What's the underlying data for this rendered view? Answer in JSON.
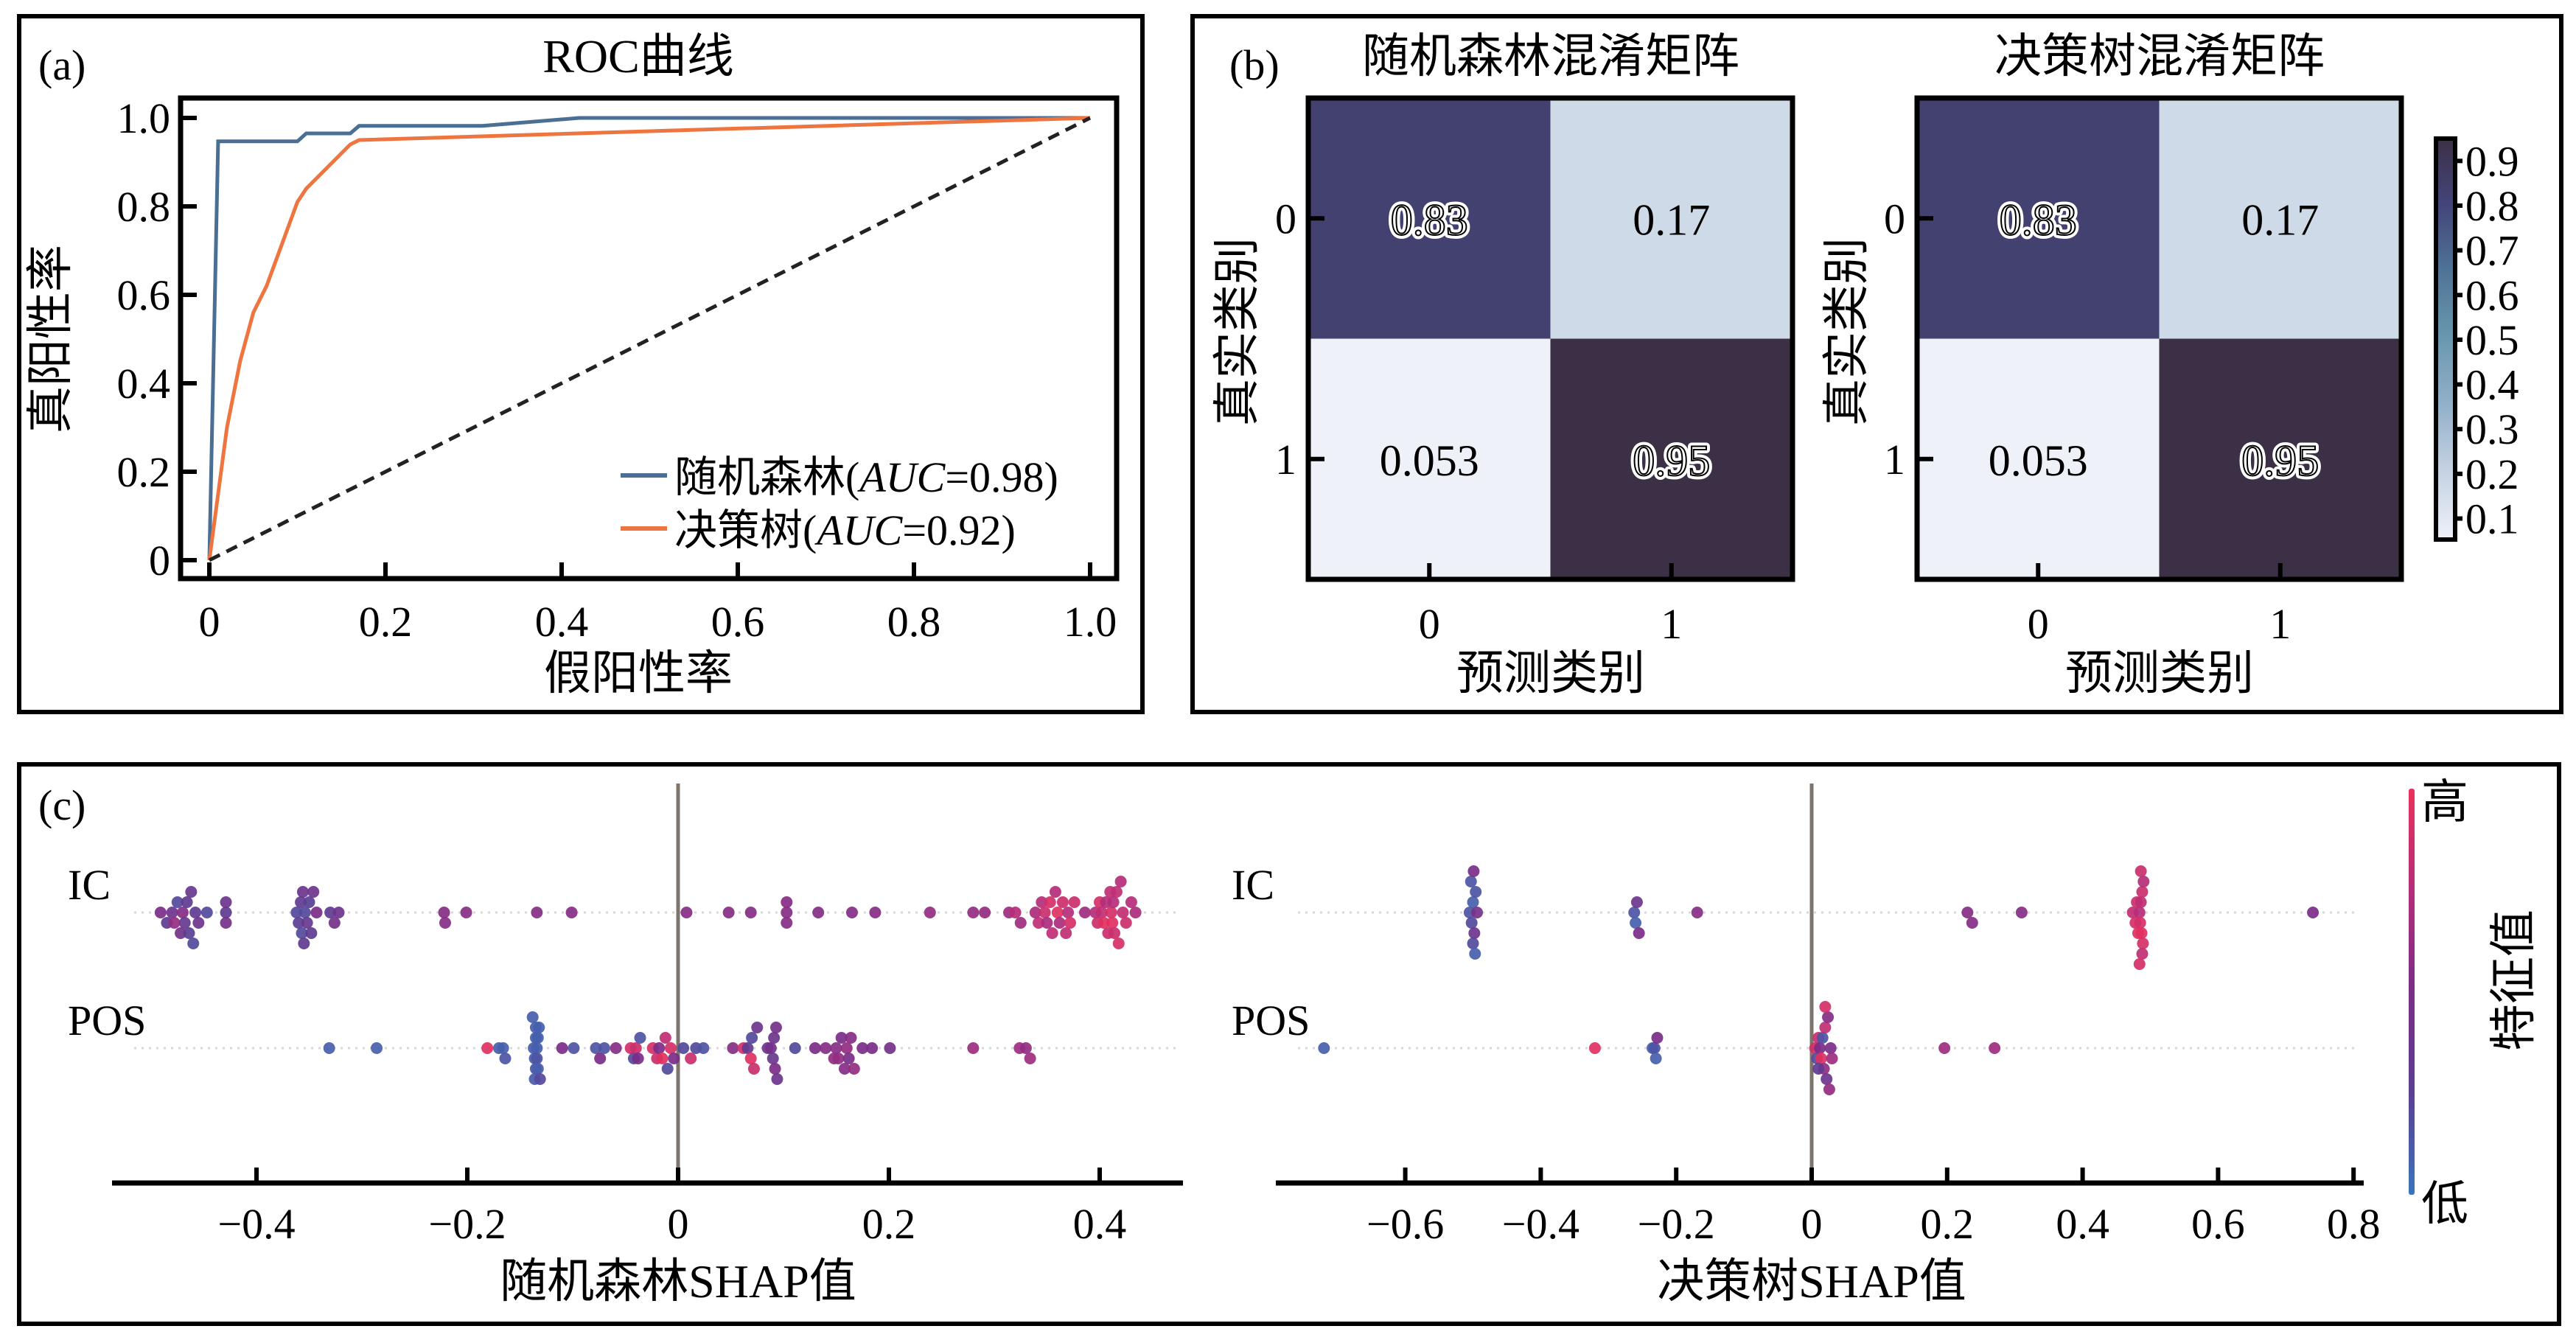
{
  "panels": {
    "a": {
      "tag": "(a)"
    },
    "b": {
      "tag": "(b)"
    },
    "c": {
      "tag": "(c)"
    }
  },
  "chart_data": [
    {
      "id": "roc",
      "type": "line",
      "title": "ROC曲线",
      "xlabel": "假阳性率",
      "ylabel": "真阳性率",
      "xlim": [
        0,
        1
      ],
      "ylim": [
        0,
        1
      ],
      "xticks": [
        0,
        0.2,
        0.4,
        0.6,
        0.8,
        1.0
      ],
      "xtick_labels": [
        "0",
        "0.2",
        "0.4",
        "0.6",
        "0.8",
        "1.0"
      ],
      "yticks": [
        0,
        0.2,
        0.4,
        0.6,
        0.8,
        1.0
      ],
      "ytick_labels": [
        "0",
        "0.2",
        "0.4",
        "0.6",
        "0.8",
        "1.0"
      ],
      "grid": false,
      "legend_position": "bottom-right",
      "series": [
        {
          "name": "随机森林",
          "legend_prefix": "随机森林(",
          "legend_auc_label": "AUC",
          "legend_suffix": "=0.98)",
          "auc": 0.98,
          "color": "#4a6f94",
          "x": [
            0,
            0.01,
            0.1,
            0.11,
            0.16,
            0.17,
            0.31,
            0.42,
            1.0
          ],
          "y": [
            0,
            0.947,
            0.947,
            0.965,
            0.965,
            0.982,
            0.982,
            1.0,
            1.0
          ]
        },
        {
          "name": "决策树",
          "legend_prefix": "决策树(",
          "legend_auc_label": "AUC",
          "legend_suffix": "=0.92)",
          "auc": 0.92,
          "color": "#ee7540",
          "x": [
            0,
            0.02,
            0.035,
            0.05,
            0.065,
            0.1,
            0.11,
            0.16,
            0.17,
            0.5,
            1.0
          ],
          "y": [
            0,
            0.3,
            0.45,
            0.56,
            0.62,
            0.81,
            0.84,
            0.94,
            0.95,
            0.97,
            1.0
          ]
        },
        {
          "name": "reference",
          "color": "#222222",
          "dashed": true,
          "x": [
            0,
            1
          ],
          "y": [
            0,
            1
          ]
        }
      ]
    },
    {
      "id": "cm-rf",
      "type": "heatmap",
      "title": "随机森林混淆矩阵",
      "xlabel": "预测类别",
      "ylabel": "真实类别",
      "x_categories": [
        "0",
        "1"
      ],
      "y_categories": [
        "0",
        "1"
      ],
      "values": [
        [
          0.83,
          0.17
        ],
        [
          0.053,
          0.95
        ]
      ],
      "labels": [
        [
          "0.83",
          "0.17"
        ],
        [
          "0.053",
          "0.95"
        ]
      ]
    },
    {
      "id": "cm-dt",
      "type": "heatmap",
      "title": "决策树混淆矩阵",
      "xlabel": "预测类别",
      "ylabel": "真实类别",
      "x_categories": [
        "0",
        "1"
      ],
      "y_categories": [
        "0",
        "1"
      ],
      "values": [
        [
          0.83,
          0.17
        ],
        [
          0.053,
          0.95
        ]
      ],
      "labels": [
        [
          "0.83",
          "0.17"
        ],
        [
          "0.053",
          "0.95"
        ]
      ]
    },
    {
      "id": "cm-colorbar",
      "type": "heatmap",
      "colorbar": true,
      "range": [
        0.053,
        0.95
      ],
      "ticks": [
        0.1,
        0.2,
        0.3,
        0.4,
        0.5,
        0.6,
        0.7,
        0.8,
        0.9
      ],
      "tick_labels": [
        "0.1",
        "0.2",
        "0.3",
        "0.4",
        "0.5",
        "0.6",
        "0.7",
        "0.8",
        "0.9"
      ],
      "colormap_stops": [
        "#eef1f8",
        "#c7d3e3",
        "#93b1c8",
        "#6a98b0",
        "#4f7596",
        "#43457a",
        "#3c3046"
      ]
    },
    {
      "id": "shap-rf",
      "type": "scatter",
      "xlabel": "随机森林SHAP值",
      "xlim": [
        -0.53,
        0.48
      ],
      "xticks": [
        -0.4,
        -0.2,
        0,
        0.2,
        0.4
      ],
      "xtick_labels": [
        "−0.4",
        "−0.2",
        "0",
        "0.2",
        "0.4"
      ],
      "features": [
        "IC",
        "POS"
      ],
      "points": {
        "IC": [
          [
            -0.491,
            0.5
          ],
          [
            -0.485,
            0.3
          ],
          [
            -0.48,
            0.4
          ],
          [
            -0.478,
            0.6
          ],
          [
            -0.475,
            0.2
          ],
          [
            -0.472,
            0.45
          ],
          [
            -0.47,
            0.55
          ],
          [
            -0.468,
            0.35
          ],
          [
            -0.466,
            0.3
          ],
          [
            -0.464,
            0.25
          ],
          [
            -0.462,
            0.35
          ],
          [
            -0.46,
            0.2
          ],
          [
            -0.458,
            0.3
          ],
          [
            -0.455,
            0.4
          ],
          [
            -0.447,
            0.2
          ],
          [
            -0.429,
            0.3
          ],
          [
            -0.429,
            0.45
          ],
          [
            -0.429,
            0.4
          ],
          [
            -0.362,
            0.2
          ],
          [
            -0.36,
            0.25
          ],
          [
            -0.358,
            0.3
          ],
          [
            -0.357,
            0.2
          ],
          [
            -0.356,
            0.4
          ],
          [
            -0.355,
            0.3
          ],
          [
            -0.354,
            0.2
          ],
          [
            -0.352,
            0.35
          ],
          [
            -0.35,
            0.25
          ],
          [
            -0.348,
            0.3
          ],
          [
            -0.346,
            0.4
          ],
          [
            -0.343,
            0.5
          ],
          [
            -0.33,
            0.3
          ],
          [
            -0.326,
            0.45
          ],
          [
            -0.322,
            0.4
          ],
          [
            -0.222,
            0.55
          ],
          [
            -0.221,
            0.55
          ],
          [
            -0.201,
            0.55
          ],
          [
            -0.134,
            0.55
          ],
          [
            -0.101,
            0.55
          ],
          [
            0.008,
            0.55
          ],
          [
            0.048,
            0.55
          ],
          [
            0.069,
            0.55
          ],
          [
            0.103,
            0.55
          ],
          [
            0.103,
            0.55
          ],
          [
            0.103,
            0.55
          ],
          [
            0.133,
            0.55
          ],
          [
            0.165,
            0.55
          ],
          [
            0.187,
            0.55
          ],
          [
            0.239,
            0.6
          ],
          [
            0.28,
            0.6
          ],
          [
            0.291,
            0.6
          ],
          [
            0.314,
            0.65
          ],
          [
            0.32,
            0.75
          ],
          [
            0.325,
            0.65
          ],
          [
            0.339,
            0.7
          ],
          [
            0.342,
            0.8
          ],
          [
            0.345,
            0.75
          ],
          [
            0.348,
            0.85
          ],
          [
            0.35,
            0.7
          ],
          [
            0.353,
            0.9
          ],
          [
            0.355,
            0.8
          ],
          [
            0.358,
            0.75
          ],
          [
            0.36,
            0.95
          ],
          [
            0.362,
            0.7
          ],
          [
            0.365,
            0.85
          ],
          [
            0.368,
            0.8
          ],
          [
            0.37,
            0.75
          ],
          [
            0.372,
            0.9
          ],
          [
            0.376,
            0.85
          ],
          [
            0.386,
            0.65
          ],
          [
            0.396,
            0.75
          ],
          [
            0.398,
            0.85
          ],
          [
            0.4,
            0.9
          ],
          [
            0.402,
            0.8
          ],
          [
            0.404,
            0.95
          ],
          [
            0.406,
            0.75
          ],
          [
            0.408,
            0.85
          ],
          [
            0.41,
            0.8
          ],
          [
            0.411,
            0.9
          ],
          [
            0.412,
            0.95
          ],
          [
            0.413,
            0.75
          ],
          [
            0.414,
            0.85
          ],
          [
            0.416,
            0.8
          ],
          [
            0.418,
            0.9
          ],
          [
            0.42,
            0.75
          ],
          [
            0.422,
            0.8
          ],
          [
            0.425,
            0.85
          ],
          [
            0.43,
            0.75
          ],
          [
            0.434,
            0.7
          ]
        ],
        "POS": [
          [
            -0.331,
            0.1
          ],
          [
            -0.286,
            0.1
          ],
          [
            -0.181,
            0.95
          ],
          [
            -0.17,
            0.1
          ],
          [
            -0.166,
            0.1
          ],
          [
            -0.164,
            0.15
          ],
          [
            -0.137,
            0.1
          ],
          [
            -0.136,
            0.1
          ],
          [
            -0.135,
            0.1
          ],
          [
            -0.135,
            0.15
          ],
          [
            -0.135,
            0.1
          ],
          [
            -0.134,
            0.1
          ],
          [
            -0.134,
            0.15
          ],
          [
            -0.133,
            0.1
          ],
          [
            -0.133,
            0.1
          ],
          [
            -0.132,
            0.1
          ],
          [
            -0.136,
            0.12
          ],
          [
            -0.138,
            0.1
          ],
          [
            -0.131,
            0.2
          ],
          [
            -0.11,
            0.5
          ],
          [
            -0.099,
            0.15
          ],
          [
            -0.078,
            0.15
          ],
          [
            -0.074,
            0.5
          ],
          [
            -0.07,
            0.15
          ],
          [
            -0.059,
            0.55
          ],
          [
            -0.045,
            0.9
          ],
          [
            -0.042,
            0.2
          ],
          [
            -0.04,
            0.85
          ],
          [
            -0.038,
            0.5
          ],
          [
            -0.036,
            0.15
          ],
          [
            -0.024,
            0.9
          ],
          [
            -0.02,
            0.85
          ],
          [
            -0.018,
            0.5
          ],
          [
            -0.015,
            0.95
          ],
          [
            -0.012,
            0.8
          ],
          [
            -0.01,
            0.2
          ],
          [
            -0.007,
            0.9
          ],
          [
            -0.004,
            0.5
          ],
          [
            0.005,
            0.2
          ],
          [
            0.012,
            0.85
          ],
          [
            0.017,
            0.2
          ],
          [
            0.024,
            0.15
          ],
          [
            0.052,
            0.55
          ],
          [
            0.062,
            0.9
          ],
          [
            0.066,
            0.3
          ],
          [
            0.069,
            0.95
          ],
          [
            0.07,
            0.2
          ],
          [
            0.072,
            0.85
          ],
          [
            0.075,
            0.4
          ],
          [
            0.085,
            0.4
          ],
          [
            0.088,
            0.45
          ],
          [
            0.09,
            0.35
          ],
          [
            0.091,
            0.4
          ],
          [
            0.092,
            0.5
          ],
          [
            0.093,
            0.45
          ],
          [
            0.094,
            0.4
          ],
          [
            0.111,
            0.2
          ],
          [
            0.13,
            0.5
          ],
          [
            0.14,
            0.55
          ],
          [
            0.148,
            0.6
          ],
          [
            0.15,
            0.55
          ],
          [
            0.152,
            0.6
          ],
          [
            0.155,
            0.5
          ],
          [
            0.158,
            0.55
          ],
          [
            0.16,
            0.6
          ],
          [
            0.162,
            0.5
          ],
          [
            0.164,
            0.55
          ],
          [
            0.167,
            0.6
          ],
          [
            0.175,
            0.5
          ],
          [
            0.184,
            0.5
          ],
          [
            0.201,
            0.45
          ],
          [
            0.28,
            0.65
          ],
          [
            0.324,
            0.65
          ],
          [
            0.33,
            0.6
          ],
          [
            0.334,
            0.65
          ]
        ]
      }
    },
    {
      "id": "shap-dt",
      "type": "scatter",
      "xlabel": "决策树SHAP值",
      "xlim": [
        -0.78,
        0.82
      ],
      "xticks": [
        -0.6,
        -0.4,
        -0.2,
        0,
        0.2,
        0.4,
        0.6,
        0.8
      ],
      "xtick_labels": [
        "−0.6",
        "−0.4",
        "−0.2",
        "0",
        "0.2",
        "0.4",
        "0.6",
        "0.8"
      ],
      "features": [
        "IC",
        "POS"
      ],
      "points": {
        "IC": [
          [
            -0.505,
            0.15
          ],
          [
            -0.502,
            0.2
          ],
          [
            -0.5,
            0.1
          ],
          [
            -0.498,
            0.4
          ],
          [
            -0.496,
            0.15
          ],
          [
            -0.494,
            0.45
          ],
          [
            -0.5,
            0.2
          ],
          [
            -0.503,
            0.15
          ],
          [
            -0.497,
            0.1
          ],
          [
            -0.499,
            0.5
          ],
          [
            -0.262,
            0.15
          ],
          [
            -0.26,
            0.1
          ],
          [
            -0.258,
            0.4
          ],
          [
            -0.255,
            0.5
          ],
          [
            -0.169,
            0.55
          ],
          [
            0.23,
            0.55
          ],
          [
            0.237,
            0.55
          ],
          [
            0.31,
            0.55
          ],
          [
            0.474,
            0.8
          ],
          [
            0.478,
            0.9
          ],
          [
            0.48,
            0.85
          ],
          [
            0.482,
            0.95
          ],
          [
            0.484,
            0.75
          ],
          [
            0.485,
            0.9
          ],
          [
            0.486,
            0.8
          ],
          [
            0.487,
            0.95
          ],
          [
            0.488,
            0.85
          ],
          [
            0.489,
            0.9
          ],
          [
            0.49,
            0.75
          ],
          [
            0.488,
            0.8
          ],
          [
            0.486,
            0.85
          ],
          [
            0.484,
            0.9
          ],
          [
            0.74,
            0.5
          ]
        ],
        "POS": [
          [
            -0.72,
            0.1
          ],
          [
            -0.32,
            0.95
          ],
          [
            -0.235,
            0.1
          ],
          [
            -0.232,
            0.15
          ],
          [
            -0.23,
            0.1
          ],
          [
            -0.228,
            0.5
          ],
          [
            0.005,
            0.9
          ],
          [
            0.008,
            0.2
          ],
          [
            0.01,
            0.85
          ],
          [
            0.012,
            0.5
          ],
          [
            0.014,
            0.95
          ],
          [
            0.016,
            0.15
          ],
          [
            0.018,
            0.6
          ],
          [
            0.02,
            0.8
          ],
          [
            0.022,
            0.4
          ],
          [
            0.024,
            0.55
          ],
          [
            0.026,
            0.6
          ],
          [
            0.028,
            0.5
          ],
          [
            0.03,
            0.65
          ],
          [
            0.01,
            0.3
          ],
          [
            0.02,
            0.9
          ],
          [
            0.196,
            0.65
          ],
          [
            0.27,
            0.65
          ]
        ]
      }
    },
    {
      "id": "shap-colorbar",
      "type": "heatmap",
      "colorbar": true,
      "label": "特征值",
      "high_label": "高",
      "low_label": "低",
      "colormap_stops": [
        "#3b74be",
        "#5a3f93",
        "#7a2d87",
        "#b52d79",
        "#ea315b"
      ]
    }
  ]
}
